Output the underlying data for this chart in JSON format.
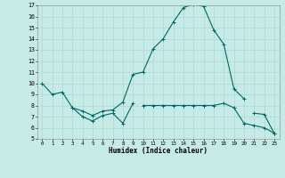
{
  "xlabel": "Humidex (Indice chaleur)",
  "ylabel": "",
  "bg_color": "#c6ebe6",
  "grid_color": "#aed8d2",
  "line_color": "#006666",
  "xlim": [
    -0.5,
    23.5
  ],
  "ylim": [
    5,
    17
  ],
  "yticks": [
    5,
    6,
    7,
    8,
    9,
    10,
    11,
    12,
    13,
    14,
    15,
    16,
    17
  ],
  "xticks": [
    0,
    1,
    2,
    3,
    4,
    5,
    6,
    7,
    8,
    9,
    10,
    11,
    12,
    13,
    14,
    15,
    16,
    17,
    18,
    19,
    20,
    21,
    22,
    23
  ],
  "xticklabels": [
    "0",
    "1",
    "2",
    "3",
    "4",
    "5",
    "6",
    "7",
    "8",
    "9",
    "10",
    "11",
    "12",
    "13",
    "14",
    "15",
    "16",
    "17",
    "18",
    "19",
    "20",
    "21",
    "22",
    "23"
  ],
  "series1": [
    10.0,
    9.0,
    9.2,
    7.8,
    7.5,
    7.1,
    7.5,
    7.6,
    8.3,
    10.8,
    11.0,
    13.1,
    14.0,
    15.5,
    16.8,
    17.1,
    16.9,
    14.8,
    13.5,
    9.5,
    8.6,
    null,
    null,
    null
  ],
  "series2": [
    null,
    null,
    null,
    7.8,
    7.0,
    6.6,
    7.1,
    7.3,
    6.4,
    8.2,
    null,
    null,
    null,
    null,
    null,
    null,
    null,
    null,
    null,
    null,
    null,
    null,
    null,
    null
  ],
  "series3": [
    null,
    null,
    null,
    null,
    null,
    null,
    null,
    null,
    null,
    null,
    null,
    null,
    null,
    null,
    null,
    null,
    null,
    null,
    null,
    null,
    null,
    7.3,
    7.2,
    5.5
  ],
  "series4": [
    null,
    null,
    null,
    null,
    null,
    null,
    null,
    null,
    null,
    null,
    8.0,
    8.0,
    8.0,
    8.0,
    8.0,
    8.0,
    8.0,
    8.0,
    8.2,
    7.8,
    6.4,
    6.2,
    6.0,
    5.5
  ]
}
